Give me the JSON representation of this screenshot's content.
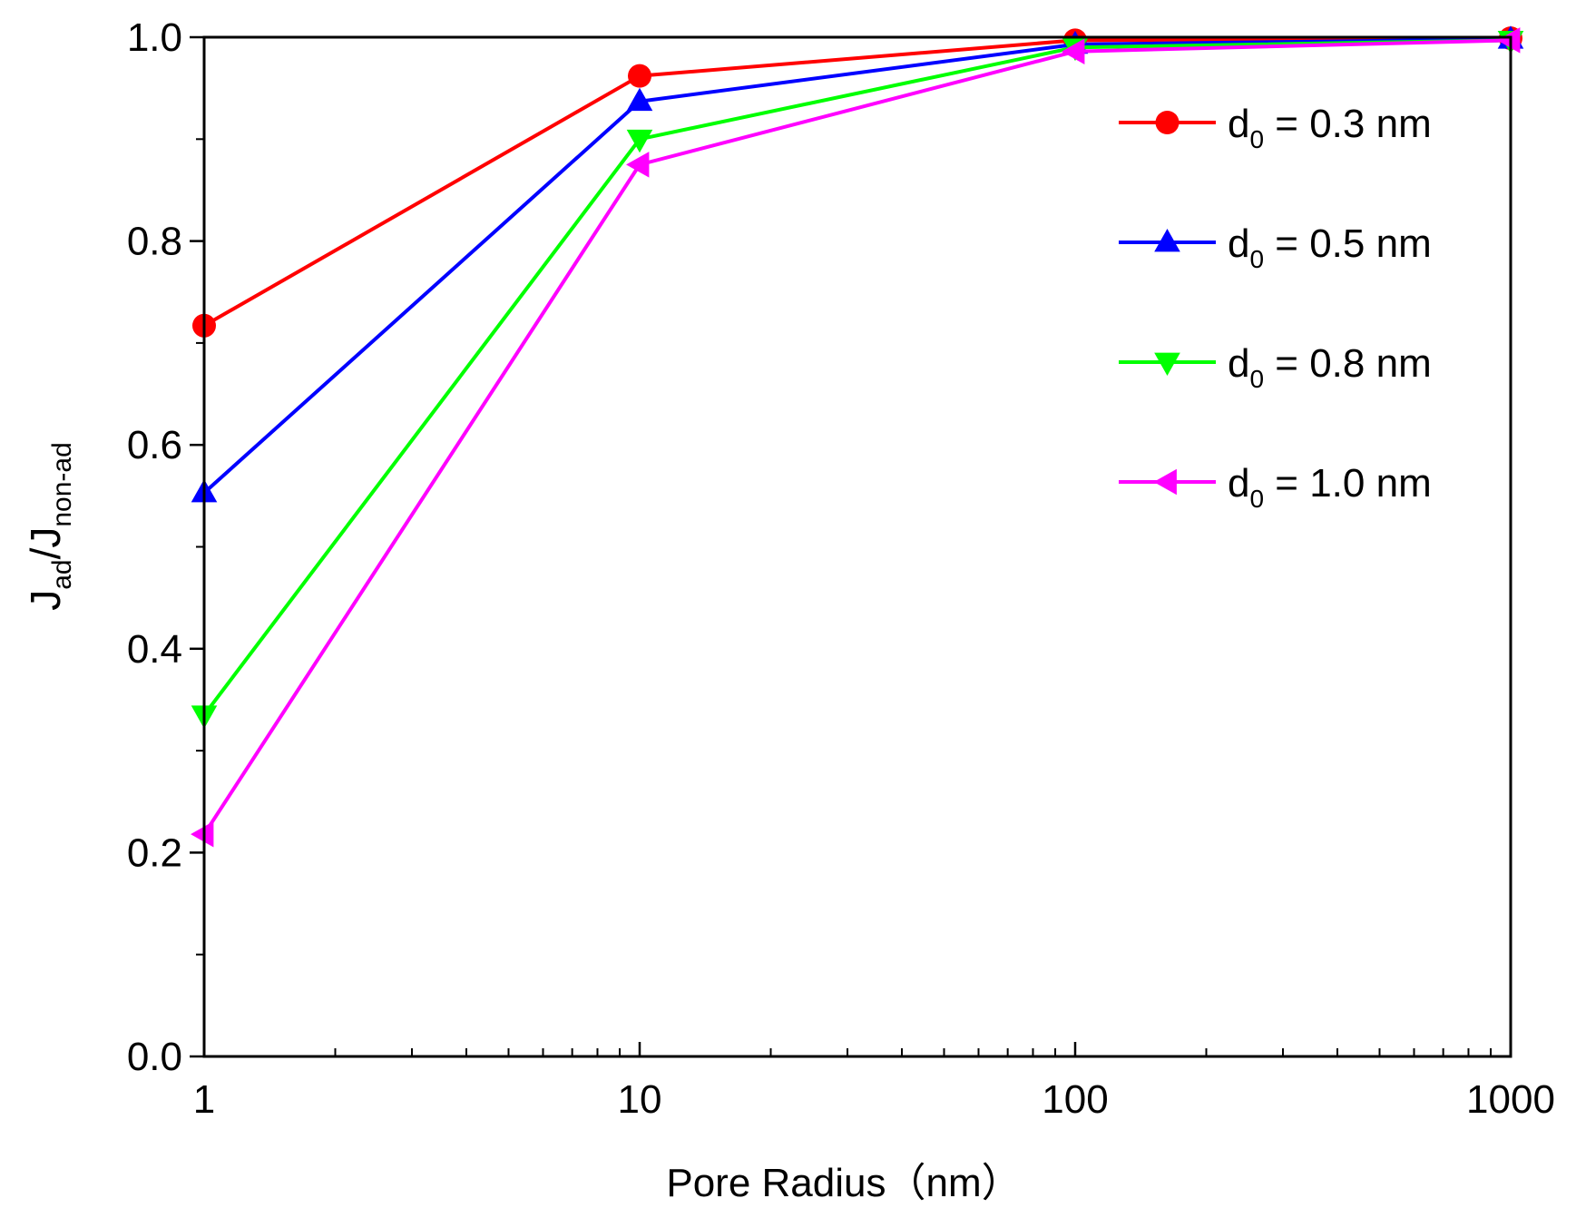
{
  "chart_data": {
    "type": "line",
    "title": "",
    "xlabel": "Pore Radius（nm）",
    "ylabel": {
      "main": "J",
      "sub1": "ad",
      "sep": "/J",
      "sub2": "non-ad"
    },
    "x_scale": "log",
    "xlim": [
      1,
      1000
    ],
    "ylim": [
      0.0,
      1.0
    ],
    "x_ticks": [
      1,
      10,
      100,
      1000
    ],
    "x_tick_labels": [
      "1",
      "10",
      "100",
      "1000"
    ],
    "y_ticks": [
      0.0,
      0.2,
      0.4,
      0.6,
      0.8,
      1.0
    ],
    "y_tick_labels": [
      "0.0",
      "0.2",
      "0.4",
      "0.6",
      "0.8",
      "1.0"
    ],
    "y_minor_step": 0.1,
    "grid": false,
    "legend_position": "top-right",
    "x": [
      1,
      10,
      100,
      1000
    ],
    "series": [
      {
        "name": "d0 = 0.3 nm",
        "label_main": "d",
        "label_sub": "0",
        "label_rest": " = 0.3 nm",
        "color": "#ff0000",
        "marker": "circle",
        "values": [
          0.717,
          0.962,
          0.997,
          0.999
        ]
      },
      {
        "name": "d0 = 0.5 nm",
        "label_main": "d",
        "label_sub": "0",
        "label_rest": " = 0.5 nm",
        "color": "#0000ff",
        "marker": "triangle-up",
        "values": [
          0.553,
          0.937,
          0.993,
          0.998
        ]
      },
      {
        "name": "d0 = 0.8 nm",
        "label_main": "d",
        "label_sub": "0",
        "label_rest": " = 0.8 nm",
        "color": "#00ff00",
        "marker": "triangle-down",
        "values": [
          0.335,
          0.9,
          0.99,
          0.997
        ]
      },
      {
        "name": "d0 = 1.0 nm",
        "label_main": "d",
        "label_sub": "0",
        "label_rest": " = 1.0 nm",
        "color": "#ff00ff",
        "marker": "triangle-left",
        "values": [
          0.218,
          0.875,
          0.986,
          0.997
        ]
      }
    ]
  }
}
